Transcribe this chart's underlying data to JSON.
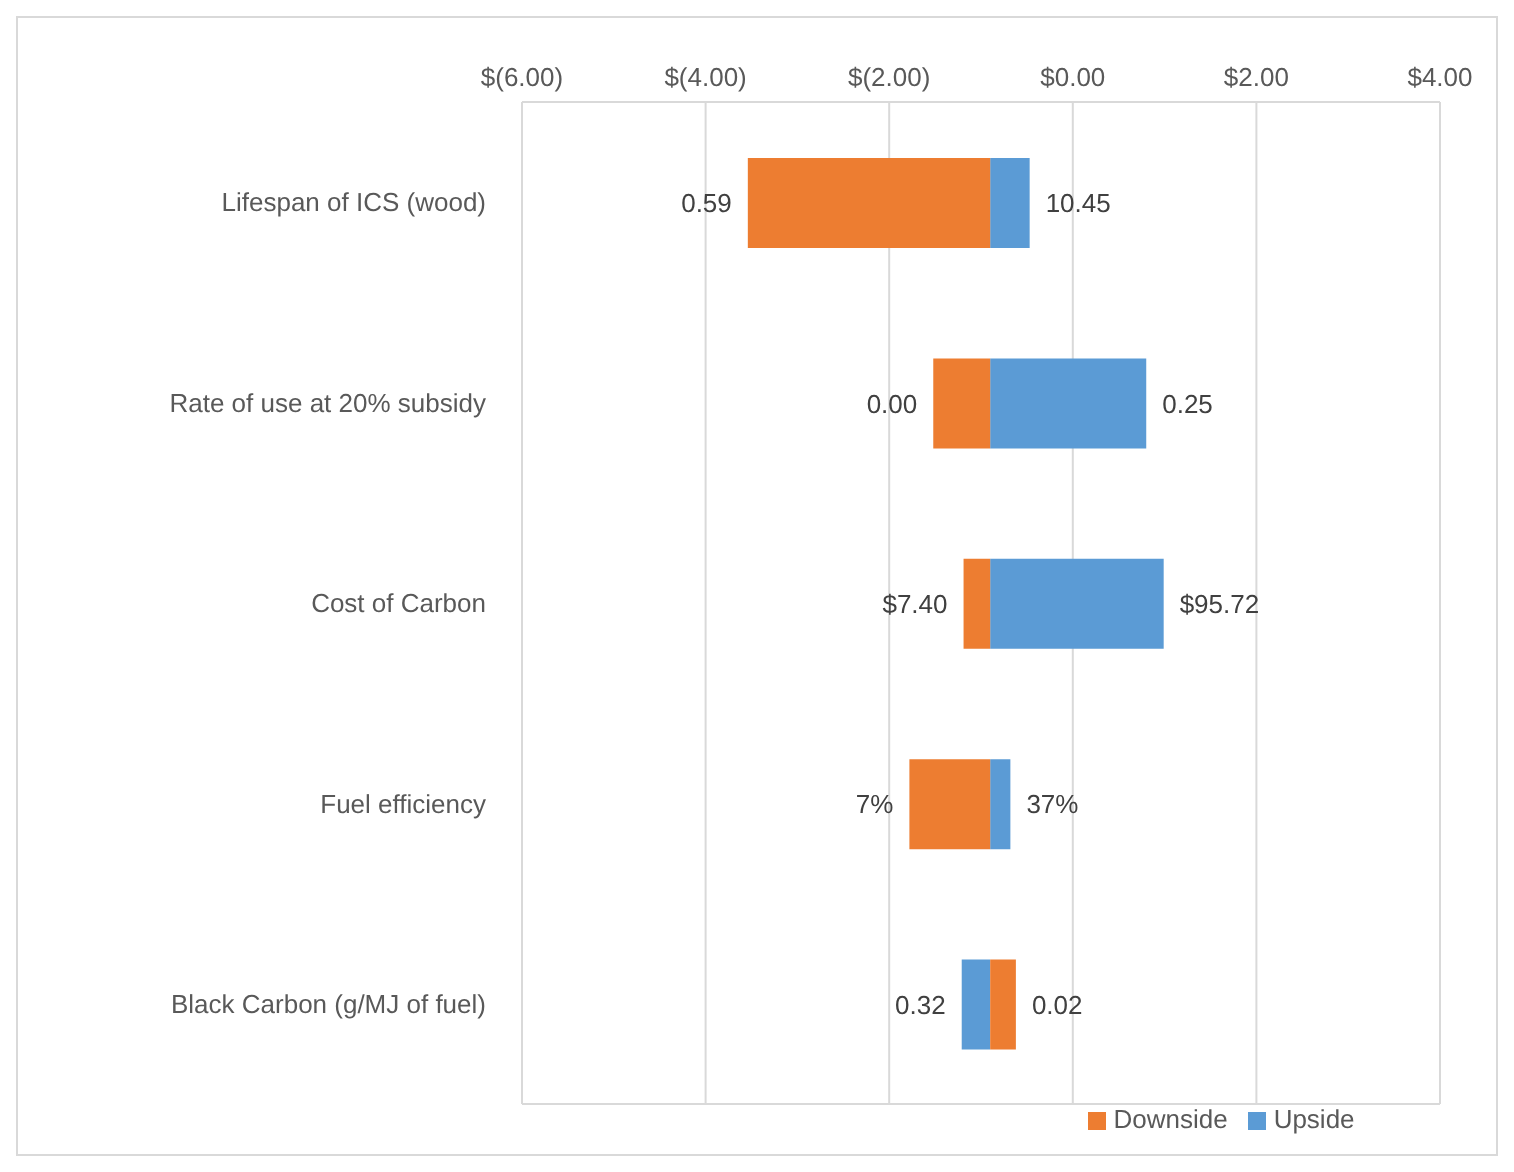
{
  "chart_data": {
    "type": "bar",
    "orientation": "horizontal",
    "categories": [
      "Lifespan of ICS (wood)",
      "Rate of use at 20% subsidy",
      "Cost of Carbon",
      "Fuel efficiency",
      "Black Carbon (g/MJ of fuel)"
    ],
    "series": [
      {
        "name": "Upside",
        "color": "#5b9bd5",
        "base": [
          -0.9,
          -0.9,
          -0.9,
          -0.9,
          -0.9
        ],
        "values": [
          0.43,
          1.7,
          1.89,
          0.22,
          -0.31
        ]
      },
      {
        "name": "Downside",
        "color": "#ed7d31",
        "base": [
          -0.9,
          -0.9,
          -0.9,
          -0.9,
          -0.9
        ],
        "values": [
          -2.64,
          -0.62,
          -0.29,
          -0.88,
          0.28
        ]
      }
    ],
    "annotations": [
      {
        "text": "10.45",
        "x": -0.47,
        "y": "Lifespan of ICS (wood)"
      },
      {
        "text": "0.59",
        "x": -3.54,
        "y": "Lifespan of ICS (wood)"
      },
      {
        "text": "0.25",
        "x": 0.8,
        "y": "Rate of use at 20% subsidy"
      },
      {
        "text": "0.00",
        "x": -1.52,
        "y": "Rate of use at 20% subsidy"
      },
      {
        "text": "$95.72",
        "x": 0.99,
        "y": "Cost of Carbon"
      },
      {
        "text": "$7.40",
        "x": -1.19,
        "y": "Cost of Carbon"
      },
      {
        "text": "37%",
        "x": -0.68,
        "y": "Fuel efficiency"
      },
      {
        "text": "7%",
        "x": -1.78,
        "y": "Fuel efficiency"
      },
      {
        "text": "0.32",
        "x": -1.21,
        "y": "Black Carbon (g/MJ of fuel)"
      },
      {
        "text": "0.02",
        "x": -0.62,
        "y": "Black Carbon (g/MJ of fuel)"
      }
    ],
    "xlim": [
      -6,
      4
    ],
    "xticks": [
      {
        "value": -6,
        "label": "$(6.00)"
      },
      {
        "value": -4,
        "label": "$(4.00)"
      },
      {
        "value": -2,
        "label": "$(2.00)"
      },
      {
        "value": 0,
        "label": "$0.00"
      },
      {
        "value": 2,
        "label": "$2.00"
      },
      {
        "value": 4,
        "label": "$4.00"
      }
    ],
    "grid": "x",
    "legend": "bottom"
  }
}
